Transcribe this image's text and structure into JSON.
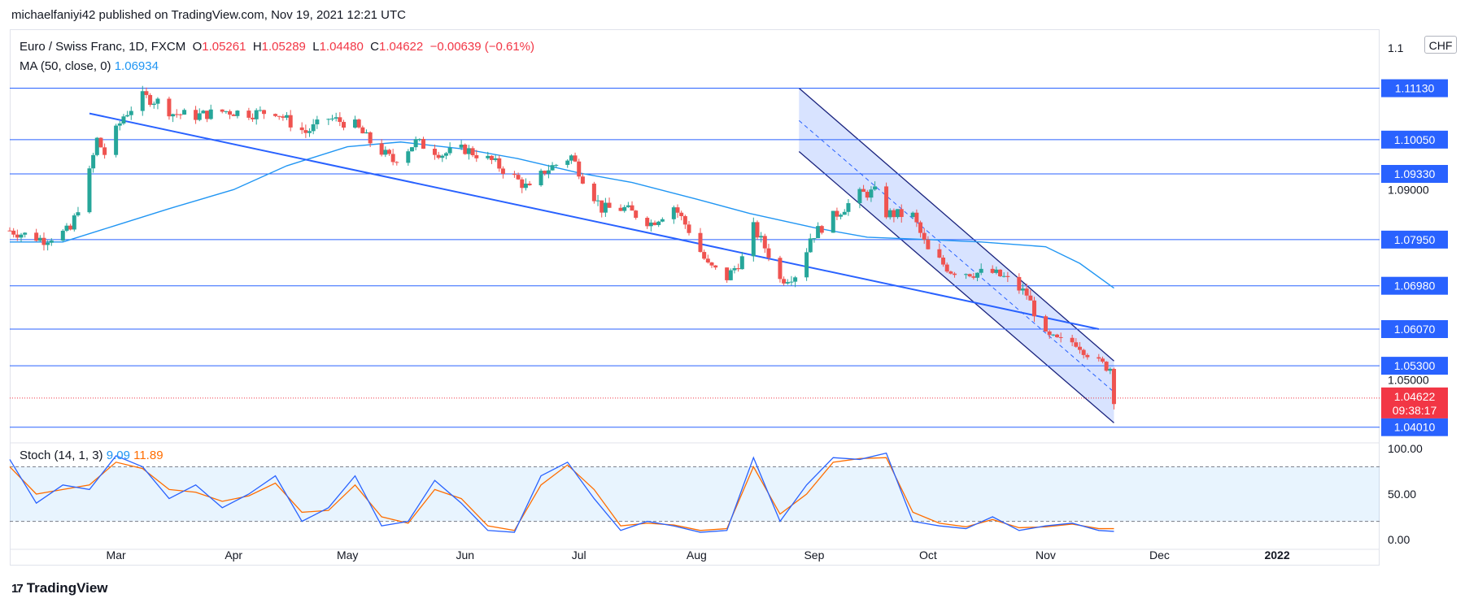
{
  "header": {
    "text": "michaelfaniyi42 published on TradingView.com, Nov 19, 2021 12:21 UTC"
  },
  "legend": {
    "symbol": "Euro / Swiss Franc, 1D, FXCM",
    "o_label": "O",
    "o": "1.05261",
    "h_label": "H",
    "h": "1.05289",
    "l_label": "L",
    "l": "1.04480",
    "c_label": "C",
    "c": "1.04622",
    "change": "−0.00639 (−0.61%)",
    "ma_label": "MA (50, close, 0)",
    "ma_value": "1.06934"
  },
  "stoch_legend": {
    "label": "Stoch (14, 1, 3)",
    "k": "9.09",
    "d": "11.89"
  },
  "currency": "CHF",
  "price_top_label": "1.1",
  "current_price": {
    "value": "1.04622",
    "countdown": "09:38:17"
  },
  "brand": {
    "logo": "17",
    "name": "TradingView"
  },
  "colors": {
    "up": "#26a69a",
    "down": "#ef5350",
    "level": "#2962ff",
    "ma": "#2196f3",
    "stoch_k": "#2962ff",
    "stoch_d": "#ff6d00",
    "current": "#f23645"
  },
  "chart_data": {
    "type": "candlestick",
    "price_axis_ticks": [
      1.09,
      1.05
    ],
    "horizontal_levels": [
      1.1113,
      1.1005,
      1.0933,
      1.0795,
      1.0698,
      1.0607,
      1.053,
      1.0401
    ],
    "horizontal_level_labels": [
      "1.11130",
      "1.10050",
      "1.09330",
      "1.07950",
      "1.06980",
      "1.06070",
      "1.05300",
      "1.04010"
    ],
    "tick_labels": {
      "1.09": "1.09000",
      "1.05": "1.05000"
    },
    "x_labels": [
      {
        "d": "2021-03-01",
        "t": "Mar"
      },
      {
        "d": "2021-04-01",
        "t": "Apr"
      },
      {
        "d": "2021-05-01",
        "t": "May"
      },
      {
        "d": "2021-06-01",
        "t": "Jun"
      },
      {
        "d": "2021-07-01",
        "t": "Jul"
      },
      {
        "d": "2021-08-01",
        "t": "Aug"
      },
      {
        "d": "2021-09-01",
        "t": "Sep"
      },
      {
        "d": "2021-10-01",
        "t": "Oct"
      },
      {
        "d": "2021-11-01",
        "t": "Nov"
      },
      {
        "d": "2021-12-01",
        "t": "Dec"
      },
      {
        "d": "2022-01-01",
        "t": "2022"
      }
    ],
    "x_range": [
      "2021-02-01",
      "2022-01-28"
    ],
    "y_range": [
      1.038,
      1.123
    ],
    "close_path": [
      [
        "2021-02-01",
        1.0814
      ],
      [
        "2021-02-10",
        1.0795
      ],
      [
        "2021-02-17",
        1.0815
      ],
      [
        "2021-02-22",
        1.0935
      ],
      [
        "2021-02-24",
        1.1005
      ],
      [
        "2021-02-26",
        1.0975
      ],
      [
        "2021-03-03",
        1.1055
      ],
      [
        "2021-03-08",
        1.1095
      ],
      [
        "2021-03-12",
        1.1085
      ],
      [
        "2021-03-16",
        1.106
      ],
      [
        "2021-03-22",
        1.1055
      ],
      [
        "2021-03-30",
        1.1065
      ],
      [
        "2021-04-06",
        1.106
      ],
      [
        "2021-04-12",
        1.1065
      ],
      [
        "2021-04-16",
        1.104
      ],
      [
        "2021-04-20",
        1.102
      ],
      [
        "2021-04-26",
        1.105
      ],
      [
        "2021-05-03",
        1.1035
      ],
      [
        "2021-05-07",
        1.1
      ],
      [
        "2021-05-13",
        1.096
      ],
      [
        "2021-05-19",
        1.1
      ],
      [
        "2021-05-26",
        1.0975
      ],
      [
        "2021-06-01",
        1.0985
      ],
      [
        "2021-06-08",
        1.096
      ],
      [
        "2021-06-14",
        1.0925
      ],
      [
        "2021-06-18",
        1.09
      ],
      [
        "2021-06-22",
        1.094
      ],
      [
        "2021-06-29",
        1.097
      ],
      [
        "2021-07-02",
        1.0925
      ],
      [
        "2021-07-07",
        1.086
      ],
      [
        "2021-07-13",
        1.086
      ],
      [
        "2021-07-20",
        1.083
      ],
      [
        "2021-07-26",
        1.0865
      ],
      [
        "2021-07-30",
        1.0815
      ],
      [
        "2021-08-04",
        1.074
      ],
      [
        "2021-08-09",
        1.0715
      ],
      [
        "2021-08-13",
        1.0755
      ],
      [
        "2021-08-16",
        1.082
      ],
      [
        "2021-08-20",
        1.0765
      ],
      [
        "2021-08-23",
        1.071
      ],
      [
        "2021-08-28",
        1.0725
      ],
      [
        "2021-08-31",
        1.08
      ],
      [
        "2021-09-07",
        1.085
      ],
      [
        "2021-09-13",
        1.089
      ],
      [
        "2021-09-17",
        1.0895
      ],
      [
        "2021-09-20",
        1.085
      ],
      [
        "2021-09-27",
        1.0845
      ],
      [
        "2021-10-01",
        1.077
      ],
      [
        "2021-10-07",
        1.073
      ],
      [
        "2021-10-13",
        1.0725
      ],
      [
        "2021-10-18",
        1.0725
      ],
      [
        "2021-10-21",
        1.0715
      ],
      [
        "2021-10-27",
        1.068
      ],
      [
        "2021-11-01",
        1.059
      ],
      [
        "2021-11-05",
        1.058
      ],
      [
        "2021-11-09",
        1.058
      ],
      [
        "2021-11-15",
        1.0535
      ],
      [
        "2021-11-18",
        1.0526
      ],
      [
        "2021-11-19",
        1.0462
      ]
    ],
    "ma_path": [
      [
        "2021-02-01",
        1.079
      ],
      [
        "2021-02-15",
        1.079
      ],
      [
        "2021-03-01",
        1.0825
      ],
      [
        "2021-03-15",
        1.086
      ],
      [
        "2021-04-01",
        1.09
      ],
      [
        "2021-04-15",
        1.095
      ],
      [
        "2021-05-01",
        1.099
      ],
      [
        "2021-05-15",
        1.1
      ],
      [
        "2021-06-01",
        1.0985
      ],
      [
        "2021-06-15",
        1.0965
      ],
      [
        "2021-07-01",
        1.0935
      ],
      [
        "2021-07-15",
        1.0915
      ],
      [
        "2021-08-01",
        1.088
      ],
      [
        "2021-08-15",
        1.085
      ],
      [
        "2021-09-01",
        1.082
      ],
      [
        "2021-09-15",
        1.08
      ],
      [
        "2021-10-01",
        1.0795
      ],
      [
        "2021-10-15",
        1.079
      ],
      [
        "2021-11-01",
        1.078
      ],
      [
        "2021-11-10",
        1.0745
      ],
      [
        "2021-11-19",
        1.0693
      ]
    ],
    "trendline": {
      "from": [
        "2021-02-22",
        1.106
      ],
      "to": [
        "2021-11-15",
        1.0607
      ]
    },
    "channel": {
      "upper": [
        [
          "2021-08-28",
          1.1113
        ],
        [
          "2021-11-19",
          1.054
        ]
      ],
      "lower": [
        [
          "2021-08-28",
          1.098
        ],
        [
          "2021-11-19",
          1.041
        ]
      ],
      "mid": [
        [
          "2021-08-28",
          1.1045
        ],
        [
          "2021-11-19",
          1.0475
        ]
      ]
    },
    "stochastic": {
      "y_range": [
        0,
        100
      ],
      "ticks": [
        {
          "v": 100,
          "t": "100.00"
        },
        {
          "v": 50,
          "t": "50.00"
        },
        {
          "v": 0,
          "t": "0.00"
        }
      ],
      "bands": [
        20,
        80
      ],
      "k_path": [
        [
          "2021-02-01",
          88
        ],
        [
          "2021-02-08",
          40
        ],
        [
          "2021-02-15",
          60
        ],
        [
          "2021-02-22",
          55
        ],
        [
          "2021-03-01",
          92
        ],
        [
          "2021-03-08",
          80
        ],
        [
          "2021-03-15",
          45
        ],
        [
          "2021-03-22",
          60
        ],
        [
          "2021-03-29",
          35
        ],
        [
          "2021-04-05",
          50
        ],
        [
          "2021-04-12",
          70
        ],
        [
          "2021-04-19",
          20
        ],
        [
          "2021-04-26",
          35
        ],
        [
          "2021-05-03",
          70
        ],
        [
          "2021-05-10",
          15
        ],
        [
          "2021-05-17",
          20
        ],
        [
          "2021-05-24",
          65
        ],
        [
          "2021-05-31",
          40
        ],
        [
          "2021-06-07",
          10
        ],
        [
          "2021-06-14",
          8
        ],
        [
          "2021-06-21",
          70
        ],
        [
          "2021-06-28",
          85
        ],
        [
          "2021-07-05",
          45
        ],
        [
          "2021-07-12",
          10
        ],
        [
          "2021-07-19",
          20
        ],
        [
          "2021-07-26",
          15
        ],
        [
          "2021-08-02",
          8
        ],
        [
          "2021-08-09",
          10
        ],
        [
          "2021-08-16",
          90
        ],
        [
          "2021-08-23",
          20
        ],
        [
          "2021-08-30",
          60
        ],
        [
          "2021-09-06",
          90
        ],
        [
          "2021-09-13",
          88
        ],
        [
          "2021-09-20",
          95
        ],
        [
          "2021-09-27",
          20
        ],
        [
          "2021-10-04",
          15
        ],
        [
          "2021-10-11",
          12
        ],
        [
          "2021-10-18",
          25
        ],
        [
          "2021-10-25",
          10
        ],
        [
          "2021-11-01",
          15
        ],
        [
          "2021-11-08",
          18
        ],
        [
          "2021-11-15",
          10
        ],
        [
          "2021-11-19",
          9
        ]
      ],
      "d_path": [
        [
          "2021-02-01",
          80
        ],
        [
          "2021-02-08",
          50
        ],
        [
          "2021-02-15",
          55
        ],
        [
          "2021-02-22",
          60
        ],
        [
          "2021-03-01",
          85
        ],
        [
          "2021-03-08",
          78
        ],
        [
          "2021-03-15",
          55
        ],
        [
          "2021-03-22",
          52
        ],
        [
          "2021-03-29",
          42
        ],
        [
          "2021-04-05",
          48
        ],
        [
          "2021-04-12",
          62
        ],
        [
          "2021-04-19",
          30
        ],
        [
          "2021-04-26",
          32
        ],
        [
          "2021-05-03",
          60
        ],
        [
          "2021-05-10",
          25
        ],
        [
          "2021-05-17",
          18
        ],
        [
          "2021-05-24",
          55
        ],
        [
          "2021-05-31",
          45
        ],
        [
          "2021-06-07",
          15
        ],
        [
          "2021-06-14",
          10
        ],
        [
          "2021-06-21",
          60
        ],
        [
          "2021-06-28",
          82
        ],
        [
          "2021-07-05",
          55
        ],
        [
          "2021-07-12",
          15
        ],
        [
          "2021-07-19",
          18
        ],
        [
          "2021-07-26",
          16
        ],
        [
          "2021-08-02",
          10
        ],
        [
          "2021-08-09",
          12
        ],
        [
          "2021-08-16",
          80
        ],
        [
          "2021-08-23",
          28
        ],
        [
          "2021-08-30",
          50
        ],
        [
          "2021-09-06",
          85
        ],
        [
          "2021-09-13",
          89
        ],
        [
          "2021-09-20",
          90
        ],
        [
          "2021-09-27",
          30
        ],
        [
          "2021-10-04",
          18
        ],
        [
          "2021-10-11",
          14
        ],
        [
          "2021-10-18",
          22
        ],
        [
          "2021-10-25",
          13
        ],
        [
          "2021-11-01",
          14
        ],
        [
          "2021-11-08",
          17
        ],
        [
          "2021-11-15",
          12
        ],
        [
          "2021-11-19",
          12
        ]
      ]
    }
  }
}
